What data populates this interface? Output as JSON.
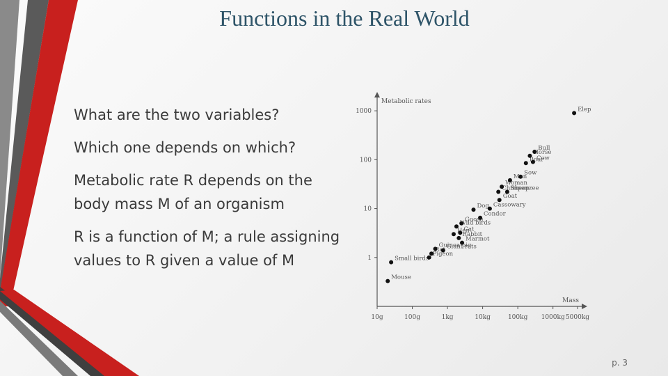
{
  "slide": {
    "title": "Functions in the Real World",
    "bullets": [
      "What are the two variables?",
      "Which one depends on which?",
      "Metabolic rate R depends on the body mass M of an organism",
      "R is a function of M; a rule assigning values to R given a value of M"
    ],
    "page_number": "p. 3"
  },
  "colors": {
    "title": "#2e5468",
    "accent_red": "#c0201e",
    "accent_gray": "#555555"
  },
  "chart_data": {
    "type": "scatter",
    "xlabel": "Mass",
    "ylabel": "Metabolic rates",
    "log_scale": true,
    "x_ticks": [
      "10g",
      "100g",
      "1kg",
      "10kg",
      "100kg",
      "1000kg",
      "5000kg"
    ],
    "y_ticks": [
      "1",
      "10",
      "100",
      "1000"
    ],
    "points": [
      {
        "label": "Mouse",
        "x": 0.02,
        "y": 0.33
      },
      {
        "label": "Small birds",
        "x": 0.025,
        "y": 0.8
      },
      {
        "label": "Pigeon",
        "x": 0.3,
        "y": 1.0
      },
      {
        "label": "Rat",
        "x": 0.35,
        "y": 1.2
      },
      {
        "label": "Guinea pig",
        "x": 0.45,
        "y": 1.5
      },
      {
        "label": "Giant rats",
        "x": 0.75,
        "y": 1.4
      },
      {
        "label": "Hen",
        "x": 1.5,
        "y": 3.0
      },
      {
        "label": "Cat",
        "x": 2.3,
        "y": 3.2
      },
      {
        "label": "Rabbit",
        "x": 2.1,
        "y": 2.5
      },
      {
        "label": "Marmot",
        "x": 2.6,
        "y": 2.0
      },
      {
        "label": "Wild birds",
        "x": 1.8,
        "y": 4.3
      },
      {
        "label": "Goose",
        "x": 2.5,
        "y": 5.0
      },
      {
        "label": "Condor",
        "x": 8.5,
        "y": 6.5
      },
      {
        "label": "Dog",
        "x": 5.5,
        "y": 9.5
      },
      {
        "label": "Cassowary",
        "x": 16,
        "y": 10
      },
      {
        "label": "Goat",
        "x": 30,
        "y": 15
      },
      {
        "label": "Chimpanzee",
        "x": 28,
        "y": 22
      },
      {
        "label": "Woman",
        "x": 35,
        "y": 28
      },
      {
        "label": "Man",
        "x": 60,
        "y": 38
      },
      {
        "label": "Sheep",
        "x": 50,
        "y": 22
      },
      {
        "label": "Sow",
        "x": 120,
        "y": 45
      },
      {
        "label": "Boar",
        "x": 170,
        "y": 85
      },
      {
        "label": "Horse",
        "x": 220,
        "y": 120
      },
      {
        "label": "Bull",
        "x": 300,
        "y": 145
      },
      {
        "label": "Cow",
        "x": 270,
        "y": 90
      },
      {
        "label": "Elephant",
        "x": 4000,
        "y": 900
      }
    ]
  }
}
